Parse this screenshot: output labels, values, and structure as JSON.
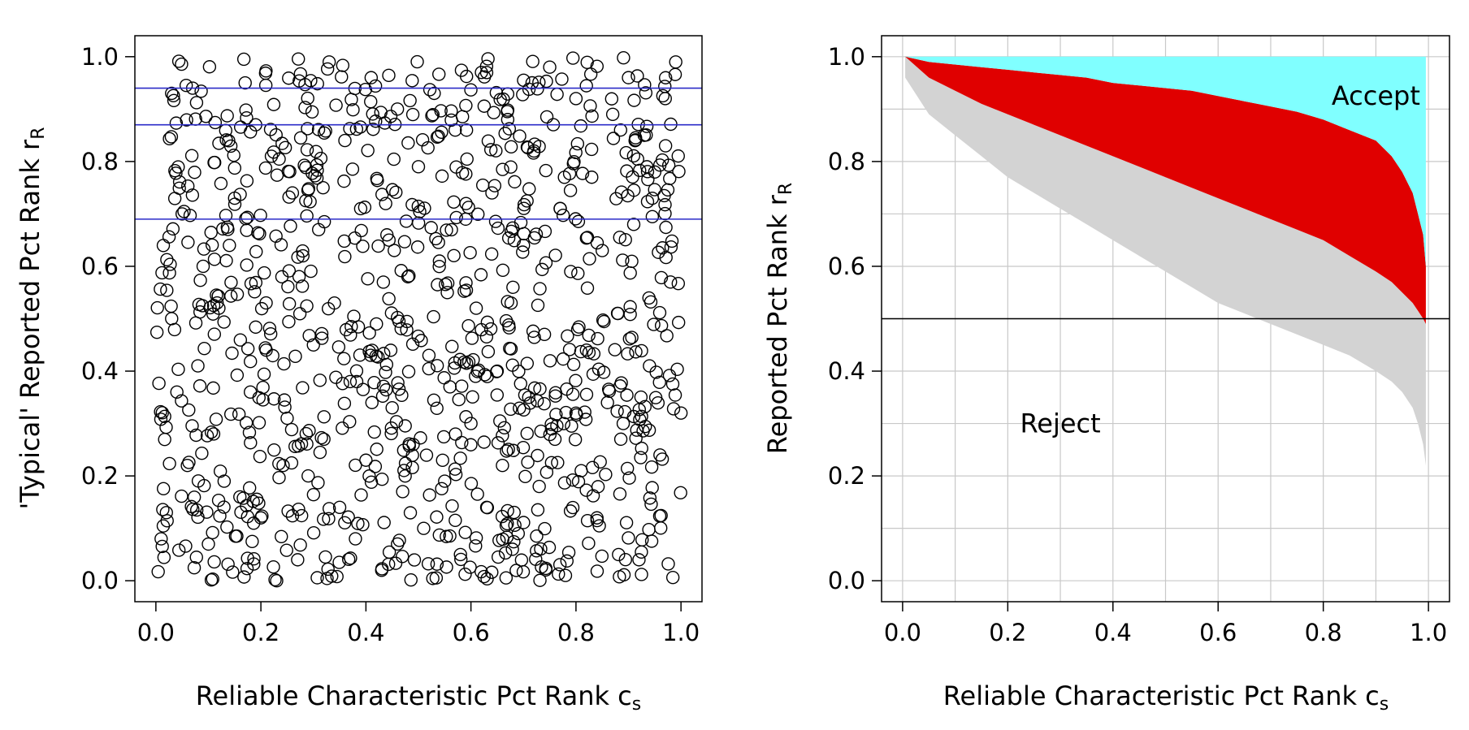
{
  "chart_data": [
    {
      "type": "scatter",
      "title": "",
      "xlabel": "Reliable Characteristic Pct Rank c",
      "xlabel_sub": "s",
      "ylabel": "'Typical' Reported Pct Rank r",
      "ylabel_sub": "R",
      "xlim": [
        -0.04,
        1.04
      ],
      "ylim": [
        -0.04,
        1.04
      ],
      "xticks": [
        "0.0",
        "0.2",
        "0.4",
        "0.6",
        "0.8",
        "1.0"
      ],
      "yticks": [
        "0.0",
        "0.2",
        "0.4",
        "0.6",
        "0.8",
        "1.0"
      ],
      "grid": false,
      "hlines": [
        0.94,
        0.87,
        0.69
      ],
      "hline_color": "#2b2bc8",
      "marker": "open-circle",
      "n_points": 1000,
      "points_note": "approximately uniform random points covering the unit square",
      "points": [
        [
          0.01,
          0.08
        ],
        [
          0.02,
          0.13
        ],
        [
          0.03,
          0.93
        ],
        [
          0.04,
          0.36
        ],
        [
          0.05,
          0.7
        ],
        [
          0.06,
          0.22
        ],
        [
          0.07,
          0.94
        ],
        [
          0.08,
          0.41
        ],
        [
          0.09,
          0.6
        ],
        [
          0.1,
          0.07
        ],
        [
          0.11,
          0.28
        ],
        [
          0.12,
          0.52
        ],
        [
          0.13,
          0.19
        ],
        [
          0.14,
          0.64
        ],
        [
          0.15,
          0.73
        ],
        [
          0.16,
          0.16
        ],
        [
          0.17,
          0.95
        ],
        [
          0.18,
          0.36
        ],
        [
          0.19,
          0.87
        ],
        [
          0.2,
          0.12
        ],
        [
          0.21,
          0.44
        ],
        [
          0.22,
          0.81
        ],
        [
          0.23,
          0.0
        ],
        [
          0.24,
          0.58
        ],
        [
          0.25,
          0.31
        ],
        [
          0.26,
          0.74
        ],
        [
          0.27,
          0.04
        ],
        [
          0.28,
          0.62
        ],
        [
          0.29,
          0.2
        ],
        [
          0.3,
          0.45
        ],
        [
          0.31,
          0.67
        ],
        [
          0.32,
          0.27
        ],
        [
          0.33,
          0.99
        ],
        [
          0.34,
          0.53
        ],
        [
          0.35,
          0.14
        ],
        [
          0.36,
          0.84
        ],
        [
          0.37,
          0.38
        ],
        [
          0.38,
          0.08
        ],
        [
          0.39,
          0.71
        ],
        [
          0.4,
          0.23
        ],
        [
          0.41,
          0.96
        ],
        [
          0.42,
          0.49
        ],
        [
          0.43,
          0.02
        ],
        [
          0.44,
          0.66
        ],
        [
          0.45,
          0.33
        ],
        [
          0.46,
          0.9
        ],
        [
          0.47,
          0.17
        ],
        [
          0.48,
          0.58
        ],
        [
          0.49,
          0.26
        ],
        [
          0.5,
          0.79
        ],
        [
          0.51,
          0.1
        ],
        [
          0.52,
          0.43
        ],
        [
          0.53,
          0.93
        ],
        [
          0.54,
          0.61
        ],
        [
          0.55,
          0.19
        ],
        [
          0.56,
          0.37
        ],
        [
          0.57,
          0.86
        ],
        [
          0.58,
          0.05
        ],
        [
          0.59,
          0.69
        ],
        [
          0.6,
          0.3
        ],
        [
          0.61,
          0.52
        ],
        [
          0.62,
          0.97
        ],
        [
          0.63,
          0.14
        ],
        [
          0.64,
          0.74
        ],
        [
          0.65,
          0.4
        ],
        [
          0.66,
          0.22
        ],
        [
          0.67,
          0.88
        ],
        [
          0.68,
          0.56
        ],
        [
          0.69,
          0.09
        ],
        [
          0.7,
          0.64
        ],
        [
          0.71,
          0.35
        ],
        [
          0.72,
          0.82
        ],
        [
          0.73,
          0.18
        ],
        [
          0.74,
          0.47
        ],
        [
          0.75,
          0.98
        ],
        [
          0.76,
          0.27
        ],
        [
          0.77,
          0.71
        ],
        [
          0.78,
          0.01
        ],
        [
          0.79,
          0.59
        ],
        [
          0.8,
          0.92
        ],
        [
          0.81,
          0.21
        ],
        [
          0.82,
          0.44
        ],
        [
          0.83,
          0.77
        ],
        [
          0.84,
          0.12
        ],
        [
          0.85,
          0.63
        ],
        [
          0.86,
          0.34
        ],
        [
          0.87,
          0.89
        ],
        [
          0.88,
          0.51
        ],
        [
          0.89,
          0.3
        ],
        [
          0.9,
          0.96
        ],
        [
          0.91,
          0.68
        ],
        [
          0.92,
          0.04
        ],
        [
          0.93,
          0.85
        ],
        [
          0.94,
          0.41
        ],
        [
          0.95,
          0.78
        ],
        [
          0.96,
          0.24
        ],
        [
          0.97,
          0.92
        ],
        [
          0.98,
          0.57
        ],
        [
          0.99,
          0.99
        ],
        [
          1.0,
          0.32
        ]
      ]
    },
    {
      "type": "area",
      "title": "",
      "xlabel": "Reliable Characteristic Pct Rank c",
      "xlabel_sub": "s",
      "ylabel": "Reported Pct Rank r",
      "ylabel_sub": "R",
      "xlim": [
        -0.04,
        1.04
      ],
      "ylim": [
        -0.04,
        1.04
      ],
      "xticks": [
        "0.0",
        "0.2",
        "0.4",
        "0.6",
        "0.8",
        "1.0"
      ],
      "yticks": [
        "0.0",
        "0.2",
        "0.4",
        "0.6",
        "0.8",
        "1.0"
      ],
      "grid": true,
      "hline": 0.5,
      "x": [
        0.005,
        0.05,
        0.1,
        0.15,
        0.2,
        0.25,
        0.3,
        0.35,
        0.4,
        0.45,
        0.5,
        0.55,
        0.6,
        0.65,
        0.7,
        0.75,
        0.8,
        0.85,
        0.9,
        0.93,
        0.95,
        0.97,
        0.98,
        0.99,
        0.995
      ],
      "series": [
        {
          "color": "#d3d3d3",
          "upper": [
            1.0,
            0.96,
            0.935,
            0.91,
            0.89,
            0.87,
            0.85,
            0.83,
            0.81,
            0.79,
            0.77,
            0.75,
            0.73,
            0.71,
            0.69,
            0.67,
            0.65,
            0.62,
            0.59,
            0.57,
            0.55,
            0.53,
            0.515,
            0.5,
            0.49
          ],
          "lower": [
            0.96,
            0.89,
            0.85,
            0.81,
            0.77,
            0.74,
            0.71,
            0.68,
            0.65,
            0.62,
            0.59,
            0.56,
            0.53,
            0.51,
            0.49,
            0.47,
            0.45,
            0.43,
            0.4,
            0.38,
            0.36,
            0.33,
            0.3,
            0.26,
            0.22
          ]
        },
        {
          "color": "#e00000",
          "upper": [
            1.0,
            0.99,
            0.985,
            0.98,
            0.975,
            0.97,
            0.965,
            0.96,
            0.95,
            0.945,
            0.94,
            0.935,
            0.925,
            0.915,
            0.905,
            0.895,
            0.88,
            0.86,
            0.84,
            0.81,
            0.78,
            0.74,
            0.7,
            0.66,
            0.6
          ],
          "lower": [
            1.0,
            0.96,
            0.935,
            0.91,
            0.89,
            0.87,
            0.85,
            0.83,
            0.81,
            0.79,
            0.77,
            0.75,
            0.73,
            0.71,
            0.69,
            0.67,
            0.65,
            0.62,
            0.59,
            0.57,
            0.55,
            0.53,
            0.515,
            0.5,
            0.49
          ]
        },
        {
          "color": "#80ffff",
          "upper": [
            1.0,
            1.0,
            1.0,
            1.0,
            1.0,
            1.0,
            1.0,
            1.0,
            1.0,
            1.0,
            1.0,
            1.0,
            1.0,
            1.0,
            1.0,
            1.0,
            1.0,
            1.0,
            1.0,
            1.0,
            1.0,
            1.0,
            1.0,
            1.0,
            1.0
          ],
          "lower": [
            1.0,
            0.99,
            0.985,
            0.98,
            0.975,
            0.97,
            0.965,
            0.96,
            0.95,
            0.945,
            0.94,
            0.935,
            0.925,
            0.915,
            0.905,
            0.895,
            0.88,
            0.86,
            0.84,
            0.81,
            0.78,
            0.74,
            0.7,
            0.66,
            0.6
          ]
        }
      ],
      "annotations": [
        {
          "text": "Accept",
          "x": 0.9,
          "y": 0.925
        },
        {
          "text": "Reject",
          "x": 0.3,
          "y": 0.3
        }
      ]
    }
  ]
}
